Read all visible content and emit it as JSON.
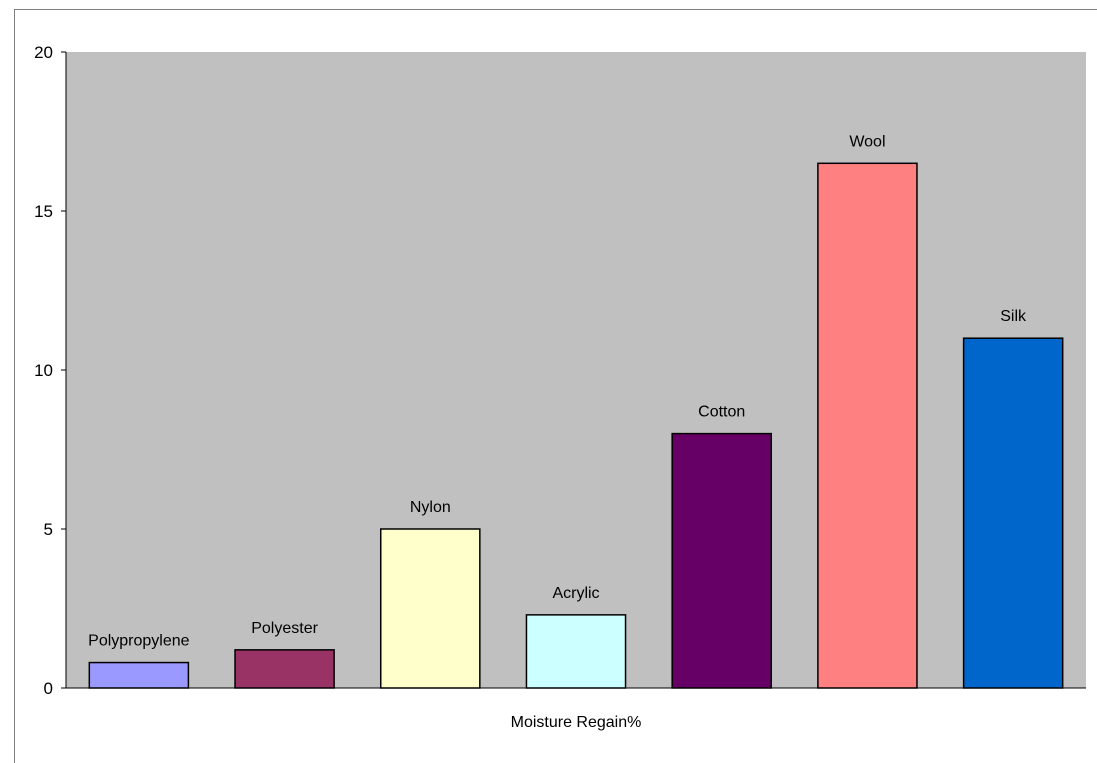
{
  "chart_data": {
    "type": "bar",
    "categories": [
      "Polypropylene",
      "Polyester",
      "Nylon",
      "Acrylic",
      "Cotton",
      "Wool",
      "Silk"
    ],
    "values": [
      0.8,
      1.2,
      5,
      2.3,
      8,
      16.5,
      11
    ],
    "colors": [
      "#9999ff",
      "#993366",
      "#ffffcc",
      "#ccffff",
      "#660066",
      "#ff8080",
      "#0066cc"
    ],
    "xlabel": "Moisture Regain%",
    "ylabel": "",
    "ylim": [
      0,
      20
    ],
    "yticks": [
      "0",
      "5",
      "10",
      "15",
      "20"
    ],
    "plot_background": "#c0c0c0",
    "grid": false,
    "data_labels": true
  }
}
